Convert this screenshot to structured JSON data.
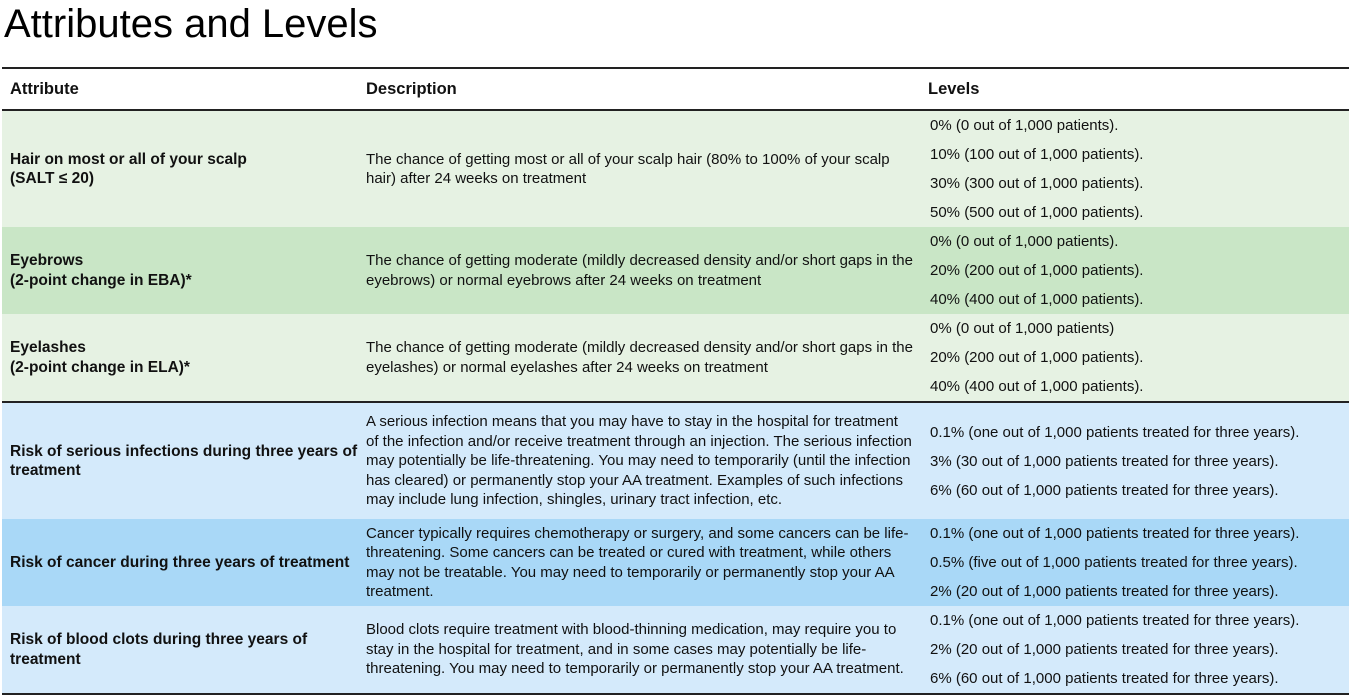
{
  "title": "Attributes and Levels",
  "columns": [
    "Attribute",
    "Description",
    "Levels"
  ],
  "rows": [
    {
      "attribute": [
        "Hair on most or all of your scalp",
        "(SALT ≤ 20)"
      ],
      "description": "The chance of getting most or all of your scalp hair (80% to 100% of your scalp hair) after 24 weeks on treatment",
      "levels": [
        "0% (0 out of 1,000 patients).",
        "10% (100 out of 1,000 patients).",
        "30% (300 out of 1,000 patients).",
        "50% (500 out of 1,000 patients)."
      ]
    },
    {
      "attribute": [
        "Eyebrows",
        "(2-point change in EBA)*"
      ],
      "description": "The chance of getting moderate (mildly decreased density and/or short gaps in the eyebrows) or normal eyebrows after 24 weeks on treatment",
      "levels": [
        "0% (0 out of 1,000 patients).",
        "20% (200 out of 1,000 patients).",
        "40% (400 out of 1,000 patients)."
      ]
    },
    {
      "attribute": [
        "Eyelashes",
        "(2-point change in ELA)*"
      ],
      "description": "The chance of getting moderate (mildly decreased density and/or short gaps in the eyelashes) or normal eyelashes after 24 weeks on treatment",
      "levels": [
        "0% (0 out of 1,000 patients)",
        "20% (200 out of 1,000 patients).",
        "40% (400 out of 1,000 patients)."
      ]
    },
    {
      "attribute": [
        "Risk of serious infections during three years of treatment"
      ],
      "description": "A serious infection means that you may have to stay in the hospital for treatment of the infection and/or receive treatment through an injection. The serious infection may potentially be life-threatening. You may need to temporarily (until the infection has cleared) or permanently stop your AA treatment. Examples of such infections may include lung infection, shingles, urinary tract infection, etc.",
      "levels": [
        "0.1% (one out of 1,000 patients treated for three years).",
        "3% (30 out of 1,000 patients treated for three years).",
        "6% (60 out of 1,000 patients treated for three years)."
      ]
    },
    {
      "attribute": [
        "Risk of cancer during three years of treatment"
      ],
      "description": "Cancer typically requires chemotherapy or surgery, and some cancers can be life-threatening. Some cancers can be treated or cured with treatment, while others may not be treatable. You may need to temporarily or permanently stop your AA treatment.",
      "levels": [
        "0.1% (one out of 1,000 patients treated for three years).",
        "0.5% (five out of 1,000 patients treated for three years).",
        "2% (20 out of 1,000 patients treated for three years)."
      ]
    },
    {
      "attribute": [
        "Risk of blood clots during three years of treatment"
      ],
      "description": "Blood clots require treatment with blood-thinning medication, may require you to stay in the hospital for treatment, and in some cases may potentially be life-threatening. You may need to temporarily or permanently stop your AA treatment.",
      "levels": [
        "0.1% (one out of 1,000 patients treated for three years).",
        "2% (20 out of 1,000 patients treated for three years).",
        "6% (60 out of 1,000 patients treated for three years)."
      ]
    }
  ],
  "colors": {
    "efficacy_light": "#e6f2e3",
    "efficacy_dark": "#c9e6c6",
    "risk_light": "#d4eafb",
    "risk_dark": "#a9d8f7"
  }
}
